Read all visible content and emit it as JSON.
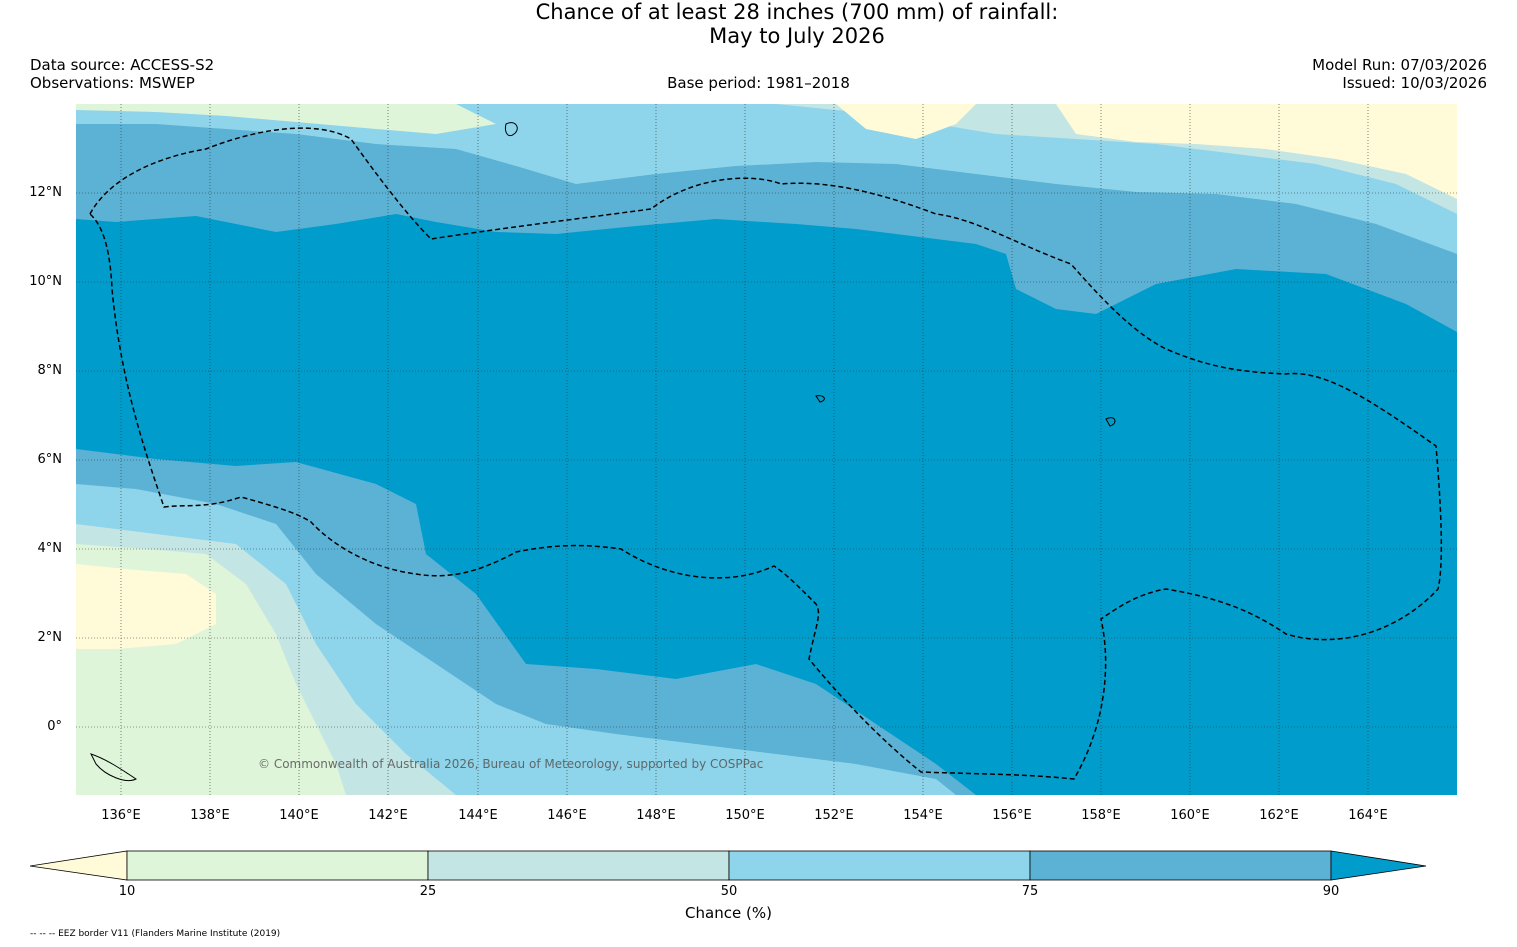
{
  "title": {
    "line1": "Chance of at least 28 inches (700  mm) of rainfall:",
    "line2": "May to July 2026"
  },
  "meta": {
    "data_source": "Data source: ACCESS-S2",
    "observations": "Observations: MSWEP",
    "base_period": "Base period: 1981–2018",
    "model_run": "Model Run: 07/03/2026",
    "issued": "Issued: 10/03/2026"
  },
  "map": {
    "copyright": "© Commonwealth of Australia 2026, Bureau of Meteorology, supported by COSPPac",
    "lat_labels": [
      "12°N",
      "10°N",
      "8°N",
      "6°N",
      "4°N",
      "2°N",
      "0°"
    ],
    "lon_labels": [
      "136°E",
      "138°E",
      "140°E",
      "142°E",
      "144°E",
      "146°E",
      "148°E",
      "150°E",
      "152°E",
      "154°E",
      "156°E",
      "158°E",
      "160°E",
      "162°E",
      "164°E"
    ],
    "eez_label": "EEZ border"
  },
  "colorbar": {
    "title": "Chance (%)",
    "ticks": [
      "10",
      "25",
      "50",
      "75",
      "90"
    ],
    "colors": [
      "#fffbd9",
      "#def5d9",
      "#c3e5e4",
      "#8ed4ea",
      "#5bb2d5",
      "#009ccb"
    ]
  },
  "footnote": "-- -- -- EEZ border V11 (Flanders Marine Institute (2019)"
}
